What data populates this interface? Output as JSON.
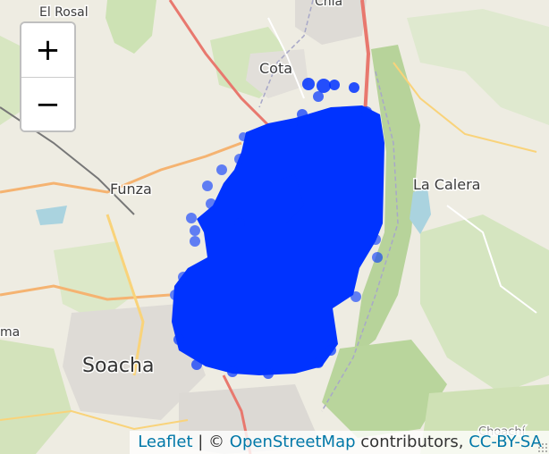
{
  "map": {
    "place_labels": [
      {
        "name": "El Rosal"
      },
      {
        "name": "Chía"
      },
      {
        "name": "Cota"
      },
      {
        "name": "Funza"
      },
      {
        "name": "La Calera"
      },
      {
        "name": "Soacha"
      },
      {
        "name": "ma"
      },
      {
        "name": "Choachí"
      }
    ],
    "point_color": "#0033ff",
    "basemap": "OpenStreetMap"
  },
  "zoom": {
    "in_label": "+",
    "out_label": "−"
  },
  "attribution": {
    "leaflet": "Leaflet",
    "separator": "| ©",
    "osm": "OpenStreetMap",
    "contributors": "contributors,",
    "license": "CC-BY-SA"
  },
  "colors": {
    "accent_link": "#0078a8",
    "points": "#0033ff",
    "forest": "#b5d29a",
    "water": "#aad3df",
    "roads": "#f5b371"
  }
}
